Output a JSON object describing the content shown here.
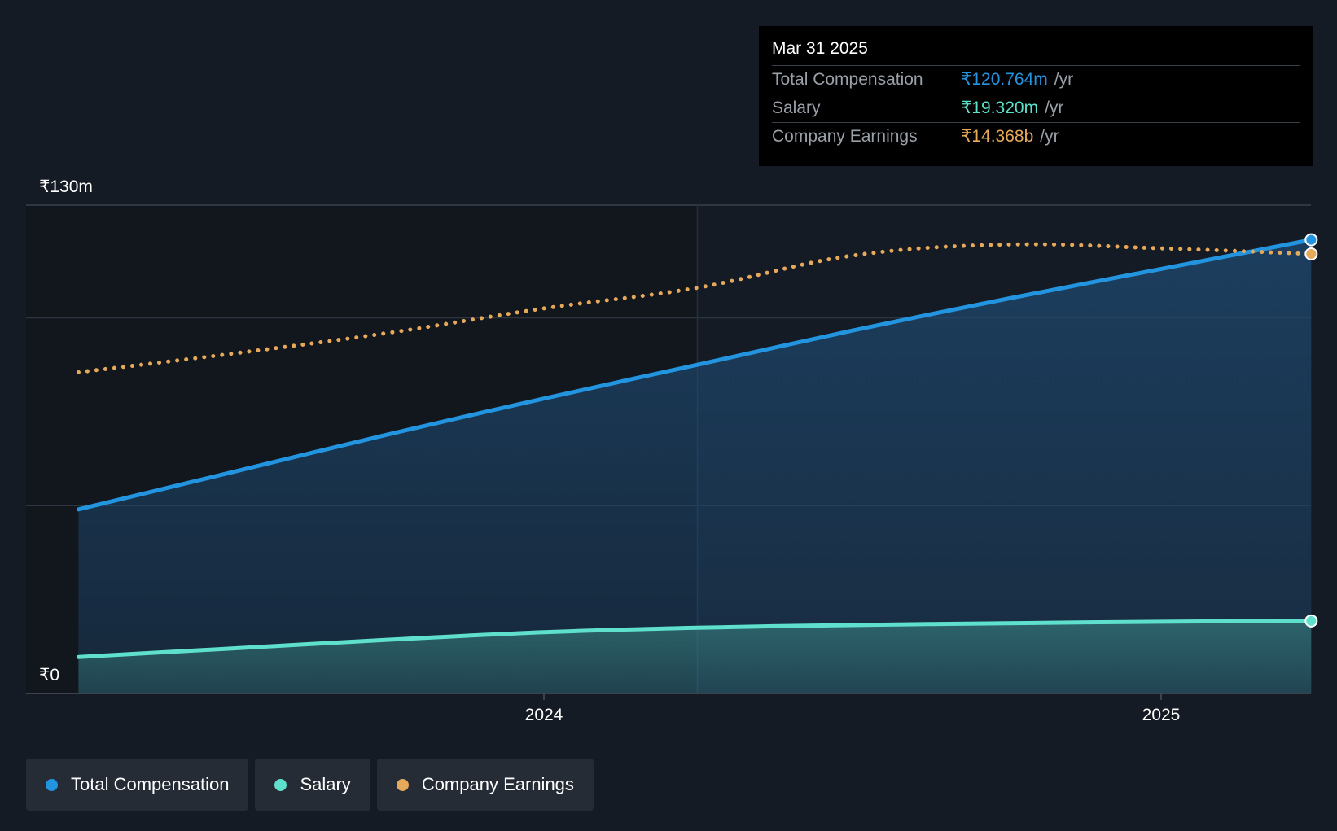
{
  "colors": {
    "background": "#151b24",
    "total_compensation": "#2394df",
    "salary": "#5ee0cc",
    "company_earnings": "#e6a95a",
    "grid": "#2e3540"
  },
  "tooltip": {
    "date": "Mar 31 2025",
    "rows": [
      {
        "label": "Total Compensation",
        "value": "₹120.764m",
        "unit": "/yr",
        "color": "#2394df"
      },
      {
        "label": "Salary",
        "value": "₹19.320m",
        "unit": "/yr",
        "color": "#5ee0cc"
      },
      {
        "label": "Company Earnings",
        "value": "₹14.368b",
        "unit": "/yr",
        "color": "#e6a95a"
      }
    ]
  },
  "legend": [
    {
      "label": "Total Compensation",
      "color": "#2394df"
    },
    {
      "label": "Salary",
      "color": "#5ee0cc"
    },
    {
      "label": "Company Earnings",
      "color": "#e6a95a"
    }
  ],
  "chart_data": {
    "type": "area",
    "title": "",
    "xlabel": "",
    "ylabel": "",
    "y_tick_labels": {
      "top": "₹130m",
      "bottom": "₹0"
    },
    "ylim": [
      0,
      130
    ],
    "x_ticks": [
      {
        "label": "2024",
        "date": "2024-01-01"
      },
      {
        "label": "2025",
        "date": "2025-01-01"
      }
    ],
    "xlim": [
      "2023-03-31",
      "2025-03-31"
    ],
    "forecast_boundary": "2024-04-01",
    "grid": true,
    "legend_position": "bottom-left",
    "series": [
      {
        "name": "Total Compensation",
        "key": "total_compensation",
        "style": "area-line",
        "points": [
          {
            "date": "2023-03-31",
            "value": 49.0
          },
          {
            "date": "2023-07-01",
            "value": 59.0
          },
          {
            "date": "2023-10-01",
            "value": 69.0
          },
          {
            "date": "2024-01-01",
            "value": 78.5
          },
          {
            "date": "2024-04-01",
            "value": 87.5
          },
          {
            "date": "2024-07-01",
            "value": 96.5
          },
          {
            "date": "2024-10-01",
            "value": 105.0
          },
          {
            "date": "2025-01-01",
            "value": 113.0
          },
          {
            "date": "2025-03-31",
            "value": 120.764
          }
        ]
      },
      {
        "name": "Salary",
        "key": "salary",
        "style": "area-line",
        "points": [
          {
            "date": "2023-03-31",
            "value": 9.7
          },
          {
            "date": "2023-07-01",
            "value": 12.0
          },
          {
            "date": "2023-10-01",
            "value": 14.3
          },
          {
            "date": "2024-01-01",
            "value": 16.3
          },
          {
            "date": "2024-04-01",
            "value": 17.5
          },
          {
            "date": "2024-07-01",
            "value": 18.2
          },
          {
            "date": "2024-10-01",
            "value": 18.7
          },
          {
            "date": "2025-01-01",
            "value": 19.1
          },
          {
            "date": "2025-03-31",
            "value": 19.32
          }
        ]
      },
      {
        "name": "Company Earnings",
        "key": "company_earnings",
        "style": "dotted",
        "scale_note": "plotted on independent scale",
        "points": [
          {
            "date": "2023-03-31",
            "value": 85.5
          },
          {
            "date": "2023-07-01",
            "value": 90.5
          },
          {
            "date": "2023-10-01",
            "value": 96.0
          },
          {
            "date": "2024-01-01",
            "value": 102.5
          },
          {
            "date": "2024-04-01",
            "value": 108.0
          },
          {
            "date": "2024-07-01",
            "value": 116.5
          },
          {
            "date": "2024-10-01",
            "value": 119.5
          },
          {
            "date": "2025-01-01",
            "value": 118.5
          },
          {
            "date": "2025-03-31",
            "value": 117.0
          }
        ]
      }
    ]
  }
}
